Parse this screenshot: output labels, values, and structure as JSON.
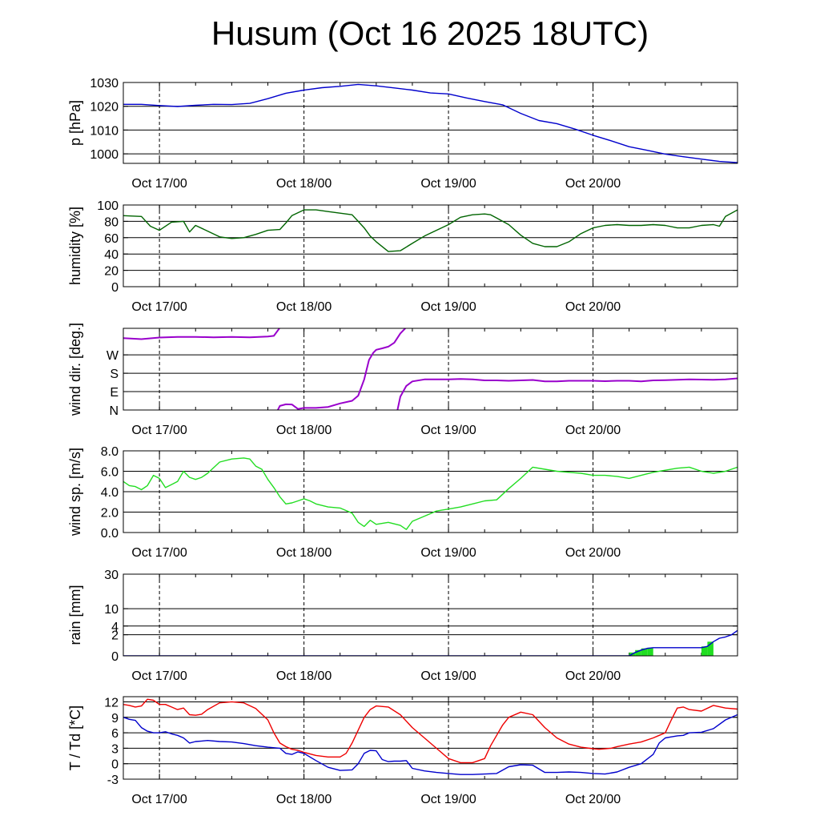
{
  "title": "Husum (Oct 16 2025 18UTC)",
  "x_tick_labels": [
    "Oct 17/00",
    "Oct 18/00",
    "Oct 19/00",
    "Oct 20/00"
  ],
  "time_range_hours": [
    0,
    102
  ],
  "day_marks_hours": [
    6,
    30,
    54,
    78
  ],
  "colors": {
    "pressure": "#0000cc",
    "humidity": "#006400",
    "wind_dir": "#9900cc",
    "wind_speed": "#22dd22",
    "rain_line": "#0000cc",
    "rain_fill": "#22dd22",
    "temperature": "#ee0000",
    "dewpoint": "#0000cc"
  },
  "chart_data": [
    {
      "type": "line",
      "ylabel": "p [hPa]",
      "ylim": [
        996,
        1030
      ],
      "yticks": [
        1000,
        1010,
        1020,
        1030
      ],
      "ytick_labels": [
        "1000",
        "1010",
        "1020",
        "1030"
      ],
      "series": [
        {
          "x": [
            0,
            3,
            6,
            9,
            12,
            15,
            18,
            21,
            24,
            27,
            30,
            33,
            36,
            39,
            42,
            45,
            48,
            51,
            54,
            57,
            60,
            63,
            66,
            69,
            72,
            75,
            78,
            81,
            84,
            87,
            90,
            93,
            96,
            99,
            102
          ],
          "values": [
            1020.8,
            1020.8,
            1020.3,
            1019.9,
            1020.4,
            1020.8,
            1020.7,
            1021.2,
            1023.2,
            1025.5,
            1026.8,
            1027.8,
            1028.4,
            1029.2,
            1028.6,
            1027.7,
            1026.8,
            1025.6,
            1025.2,
            1023.5,
            1022.0,
            1020.6,
            1017.0,
            1014.0,
            1012.7,
            1010.4,
            1007.8,
            1005.5,
            1003.0,
            1001.5,
            999.9,
            998.8,
            997.8,
            996.8,
            996.3
          ]
        }
      ]
    },
    {
      "type": "line",
      "ylabel": "humidity [%]",
      "ylim": [
        0,
        100
      ],
      "yticks": [
        0,
        20,
        40,
        60,
        80,
        100
      ],
      "ytick_labels": [
        "0",
        "20",
        "40",
        "60",
        "80",
        "100"
      ],
      "series": [
        {
          "x": [
            0,
            3,
            4.5,
            6,
            8,
            10,
            11,
            12,
            14,
            16,
            18,
            20,
            22,
            24,
            26,
            27,
            28,
            30,
            32,
            34,
            36,
            38,
            39,
            40,
            41,
            42,
            44,
            46,
            48,
            50,
            52,
            54,
            56,
            58,
            60,
            61,
            62,
            64,
            66,
            68,
            70,
            72,
            74,
            76,
            78,
            80,
            82,
            84,
            86,
            88,
            90,
            92,
            94,
            96,
            98,
            99,
            100,
            102
          ],
          "values": [
            87,
            86,
            74,
            69,
            79,
            80,
            67,
            75,
            68,
            61,
            59,
            60,
            64,
            69,
            70,
            78,
            87,
            94,
            94,
            92,
            90,
            88,
            80,
            72,
            62,
            55,
            43,
            44,
            53,
            62,
            69,
            76,
            85,
            88,
            89,
            88,
            84,
            76,
            63,
            53,
            49,
            49,
            55,
            65,
            72,
            75,
            76,
            75,
            75,
            76,
            75,
            72,
            72,
            75,
            76,
            74,
            86,
            94
          ]
        }
      ]
    },
    {
      "type": "line",
      "ylabel": "wind dir. [deg.]",
      "ylim": [
        0,
        400
      ],
      "yticks": [
        0,
        90,
        180,
        270
      ],
      "ytick_labels": [
        "N",
        "E",
        "S",
        "W"
      ],
      "series": [
        {
          "x": [
            0,
            3,
            6,
            9,
            12,
            15,
            18,
            21,
            24,
            25,
            26
          ],
          "values": [
            352,
            347,
            355,
            358,
            358,
            356,
            358,
            356,
            360,
            363,
            403
          ]
        },
        {
          "x": [
            25.6,
            26,
            27,
            28,
            29,
            30,
            32,
            34,
            36,
            38,
            39,
            40,
            40.8,
            41.5,
            42,
            43,
            44,
            45,
            46,
            47
          ],
          "values": [
            -3,
            20,
            28,
            27,
            5,
            10,
            10,
            15,
            32,
            45,
            70,
            150,
            245,
            280,
            295,
            302,
            310,
            330,
            375,
            405
          ]
        },
        {
          "x": [
            45.5,
            46,
            47,
            48,
            50,
            52,
            54,
            56,
            58,
            60,
            62,
            64,
            66,
            68,
            70,
            72,
            74,
            76,
            78,
            80,
            82,
            84,
            86,
            88,
            90,
            92,
            94,
            96,
            98,
            100,
            102
          ],
          "values": [
            -5,
            65,
            118,
            140,
            150,
            150,
            150,
            152,
            150,
            145,
            145,
            143,
            145,
            147,
            140,
            140,
            143,
            143,
            143,
            141,
            143,
            143,
            140,
            145,
            146,
            148,
            150,
            149,
            148,
            150,
            155
          ]
        }
      ]
    },
    {
      "type": "line",
      "ylabel": "wind sp. [m/s]",
      "ylim": [
        0,
        8.0
      ],
      "yticks": [
        0,
        2,
        4,
        6,
        8
      ],
      "ytick_labels": [
        "0.0",
        "2.0",
        "4.0",
        "6.0",
        "8.0"
      ],
      "series": [
        {
          "x": [
            0,
            1,
            2,
            3,
            4,
            5,
            6,
            7,
            8,
            9,
            10,
            11,
            12,
            13,
            14,
            16,
            18,
            20,
            21,
            22,
            23,
            24,
            25,
            26,
            27,
            28,
            29,
            30,
            31,
            32,
            34,
            36,
            38,
            39,
            40,
            41,
            42,
            44,
            46,
            47,
            48,
            50,
            52,
            54,
            56,
            58,
            60,
            62,
            64,
            66,
            68,
            70,
            72,
            74,
            76,
            78,
            80,
            82,
            84,
            86,
            88,
            90,
            92,
            94,
            96,
            98,
            100,
            102
          ],
          "values": [
            5.0,
            4.6,
            4.5,
            4.2,
            4.6,
            5.6,
            5.3,
            4.4,
            4.7,
            5.0,
            6.0,
            5.4,
            5.2,
            5.4,
            5.8,
            6.9,
            7.2,
            7.3,
            7.2,
            6.5,
            6.2,
            5.2,
            4.4,
            3.5,
            2.8,
            2.9,
            3.1,
            3.3,
            3.1,
            2.8,
            2.5,
            2.4,
            1.9,
            1.0,
            0.6,
            1.2,
            0.8,
            1.0,
            0.7,
            0.3,
            1.1,
            1.6,
            2.1,
            2.3,
            2.5,
            2.8,
            3.1,
            3.2,
            4.3,
            5.3,
            6.4,
            6.2,
            6.0,
            5.9,
            5.8,
            5.6,
            5.6,
            5.5,
            5.3,
            5.6,
            5.9,
            6.1,
            6.3,
            6.4,
            6.0,
            5.8,
            6.0,
            6.4
          ]
        }
      ]
    },
    {
      "type": "area",
      "ylabel": "rain [mm]",
      "scale": "sqrt",
      "ylim": [
        0,
        30
      ],
      "yticks": [
        0,
        2,
        4,
        10,
        30
      ],
      "ytick_labels": [
        "0",
        "2",
        "4",
        "10",
        "30"
      ],
      "series": [
        {
          "x": [
            0,
            84,
            85,
            86,
            87,
            88,
            89,
            90,
            91,
            92,
            93,
            94,
            95,
            96,
            97,
            98,
            99,
            100,
            101,
            102
          ],
          "values": [
            0,
            0,
            0.05,
            0.15,
            0.25,
            0.3,
            0.3,
            0.3,
            0.3,
            0.3,
            0.3,
            0.3,
            0.3,
            0.3,
            0.4,
            0.9,
            1.4,
            1.6,
            2.0,
            2.9
          ]
        }
      ]
    },
    {
      "type": "line",
      "ylabel": "T / Td [*C]",
      "ylim": [
        -3,
        13
      ],
      "yticks": [
        -3,
        0,
        3,
        6,
        9,
        12
      ],
      "ytick_labels": [
        "-3",
        "0",
        "3",
        "6",
        "9",
        "12"
      ],
      "series": [
        {
          "name": "T",
          "x": [
            0,
            1,
            2,
            3,
            4,
            5,
            6,
            7,
            8,
            9,
            10,
            11,
            12,
            13,
            14,
            16,
            18,
            20,
            22,
            24,
            25,
            26,
            27,
            28,
            29,
            30,
            32,
            34,
            36,
            37,
            38,
            39,
            40,
            41,
            42,
            44,
            46,
            48,
            50,
            52,
            54,
            56,
            58,
            60,
            61,
            62,
            63,
            64,
            66,
            68,
            70,
            72,
            74,
            76,
            78,
            79,
            80,
            81,
            82,
            84,
            86,
            88,
            89,
            90,
            91,
            92,
            93,
            94,
            96,
            98,
            100,
            102
          ],
          "values": [
            11.5,
            11.3,
            11.0,
            11.2,
            12.5,
            12.3,
            11.5,
            11.5,
            11.0,
            10.5,
            10.8,
            9.5,
            9.4,
            9.6,
            10.5,
            11.8,
            12.0,
            11.8,
            10.7,
            8.5,
            6.0,
            4.0,
            3.3,
            2.8,
            2.6,
            2.2,
            1.6,
            1.3,
            1.3,
            2.0,
            4.0,
            6.5,
            9.0,
            10.5,
            11.2,
            11.0,
            9.5,
            7.0,
            5.0,
            3.0,
            1.0,
            0.2,
            0.2,
            1.0,
            3.5,
            5.5,
            7.5,
            9.0,
            10.0,
            9.5,
            7.0,
            5.0,
            3.8,
            3.2,
            2.9,
            2.8,
            2.9,
            3.0,
            3.3,
            3.8,
            4.2,
            5.0,
            5.5,
            6.0,
            8.5,
            10.8,
            11.0,
            10.5,
            10.2,
            11.3,
            10.8,
            10.6
          ]
        },
        {
          "name": "Td",
          "x": [
            0,
            1,
            2,
            3,
            4,
            5,
            6,
            7,
            8,
            9,
            10,
            11,
            12,
            13,
            14,
            16,
            18,
            20,
            22,
            24,
            26,
            27,
            28,
            29,
            30,
            32,
            34,
            36,
            38,
            39,
            40,
            41,
            42,
            43,
            44,
            45,
            46,
            47,
            48,
            50,
            52,
            54,
            56,
            58,
            60,
            62,
            64,
            66,
            68,
            70,
            72,
            74,
            76,
            78,
            80,
            82,
            84,
            86,
            88,
            89,
            90,
            91,
            92,
            93,
            94,
            96,
            98,
            100,
            102
          ],
          "values": [
            9.0,
            8.6,
            8.4,
            7.0,
            6.3,
            6.0,
            6.0,
            6.2,
            5.8,
            5.5,
            5.0,
            4.0,
            4.3,
            4.4,
            4.5,
            4.3,
            4.2,
            3.9,
            3.5,
            3.2,
            3.0,
            2.0,
            1.8,
            2.3,
            2.0,
            0.6,
            -0.7,
            -1.3,
            -1.2,
            0.0,
            2.0,
            2.6,
            2.5,
            0.8,
            0.4,
            0.5,
            0.5,
            0.6,
            -0.9,
            -1.4,
            -1.7,
            -1.9,
            -2.1,
            -2.1,
            -2.0,
            -1.9,
            -0.6,
            -0.2,
            -0.3,
            -1.7,
            -1.7,
            -1.6,
            -1.7,
            -1.9,
            -2.0,
            -1.6,
            -0.7,
            0.0,
            1.8,
            4.0,
            5.0,
            5.2,
            5.4,
            5.5,
            6.0,
            6.1,
            6.8,
            8.5,
            9.5
          ]
        }
      ]
    }
  ]
}
